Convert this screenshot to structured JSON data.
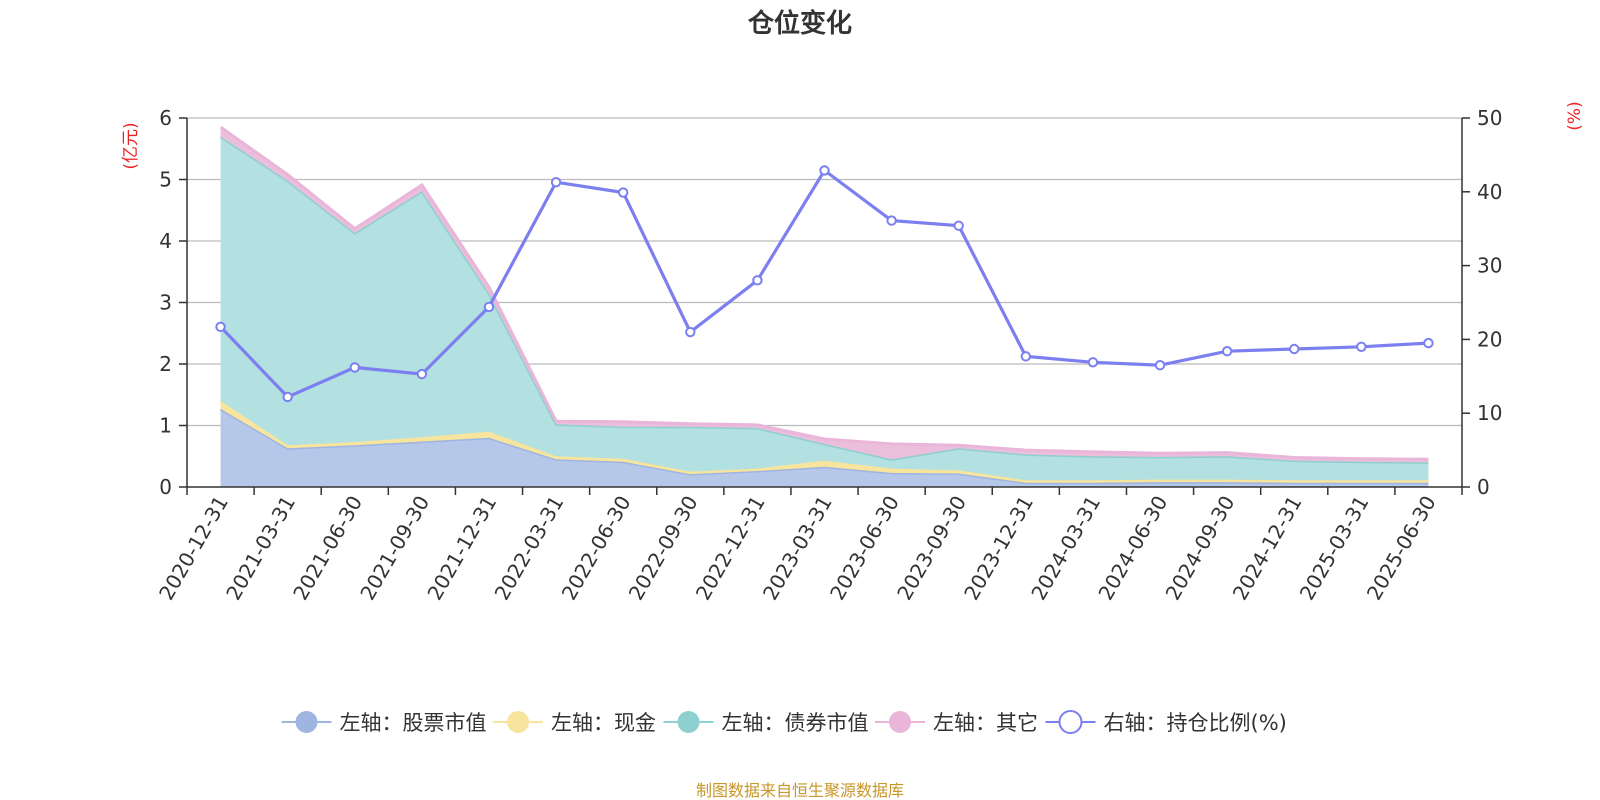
{
  "chart_data": {
    "type": "area",
    "title": "仓位变化",
    "left_axis_unit": "(亿元)",
    "right_axis_unit": "(%)",
    "categories": [
      "2020-12-31",
      "2021-03-31",
      "2021-06-30",
      "2021-09-30",
      "2021-12-31",
      "2022-03-31",
      "2022-06-30",
      "2022-09-30",
      "2022-12-31",
      "2023-03-31",
      "2023-06-30",
      "2023-09-30",
      "2023-12-31",
      "2024-03-31",
      "2024-06-30",
      "2024-09-30",
      "2024-12-31",
      "2025-03-31",
      "2025-06-30"
    ],
    "ylim_left": [
      0,
      6
    ],
    "yticks_left": [
      "0",
      "1",
      "2",
      "3",
      "4",
      "5",
      "6"
    ],
    "ylim_right": [
      0,
      50
    ],
    "yticks_right": [
      "0",
      "10",
      "20",
      "30",
      "40",
      "50"
    ],
    "grid": true,
    "legend_position": "bottom",
    "stacked_series": [
      {
        "name": "左轴：股票市值",
        "color": "#9db5e0",
        "fill": "#b6c8ea",
        "values": [
          1.27,
          0.63,
          0.68,
          0.74,
          0.8,
          0.45,
          0.41,
          0.21,
          0.26,
          0.33,
          0.23,
          0.22,
          0.07,
          0.07,
          0.08,
          0.08,
          0.07,
          0.07,
          0.07
        ]
      },
      {
        "name": "左轴：现金",
        "color": "#f7e49d",
        "fill": "#f7e49d",
        "values": [
          0.13,
          0.05,
          0.05,
          0.07,
          0.1,
          0.05,
          0.05,
          0.04,
          0.04,
          0.1,
          0.07,
          0.05,
          0.04,
          0.04,
          0.04,
          0.04,
          0.04,
          0.04,
          0.04
        ]
      },
      {
        "name": "左轴：债券市值",
        "color": "#8ecfd0",
        "fill": "#b3e0e0",
        "values": [
          4.3,
          4.3,
          3.4,
          4.0,
          2.25,
          0.52,
          0.52,
          0.73,
          0.66,
          0.27,
          0.15,
          0.36,
          0.42,
          0.39,
          0.37,
          0.38,
          0.32,
          0.3,
          0.29
        ]
      },
      {
        "name": "左轴：其它",
        "color": "#e9b5d8",
        "fill": "#ebbfdc",
        "values": [
          0.15,
          0.1,
          0.07,
          0.1,
          0.1,
          0.05,
          0.08,
          0.05,
          0.05,
          0.08,
          0.25,
          0.05,
          0.07,
          0.07,
          0.06,
          0.06,
          0.05,
          0.05,
          0.05
        ]
      }
    ],
    "line_series": {
      "name": "右轴：持仓比例(%)",
      "color": "#7b7ff0",
      "values": [
        21.7,
        12.2,
        16.2,
        15.3,
        24.4,
        41.3,
        39.9,
        21.0,
        28.0,
        42.9,
        36.1,
        35.4,
        17.7,
        16.9,
        16.5,
        18.4,
        18.7,
        19.0,
        19.5
      ]
    }
  },
  "footer": {
    "source": "制图数据来自恒生聚源数据库",
    "source_color": "#c8962a"
  },
  "colors": {
    "axis_unit": "#ee2222",
    "grid": "#bbbbbb",
    "axis": "#333333"
  }
}
